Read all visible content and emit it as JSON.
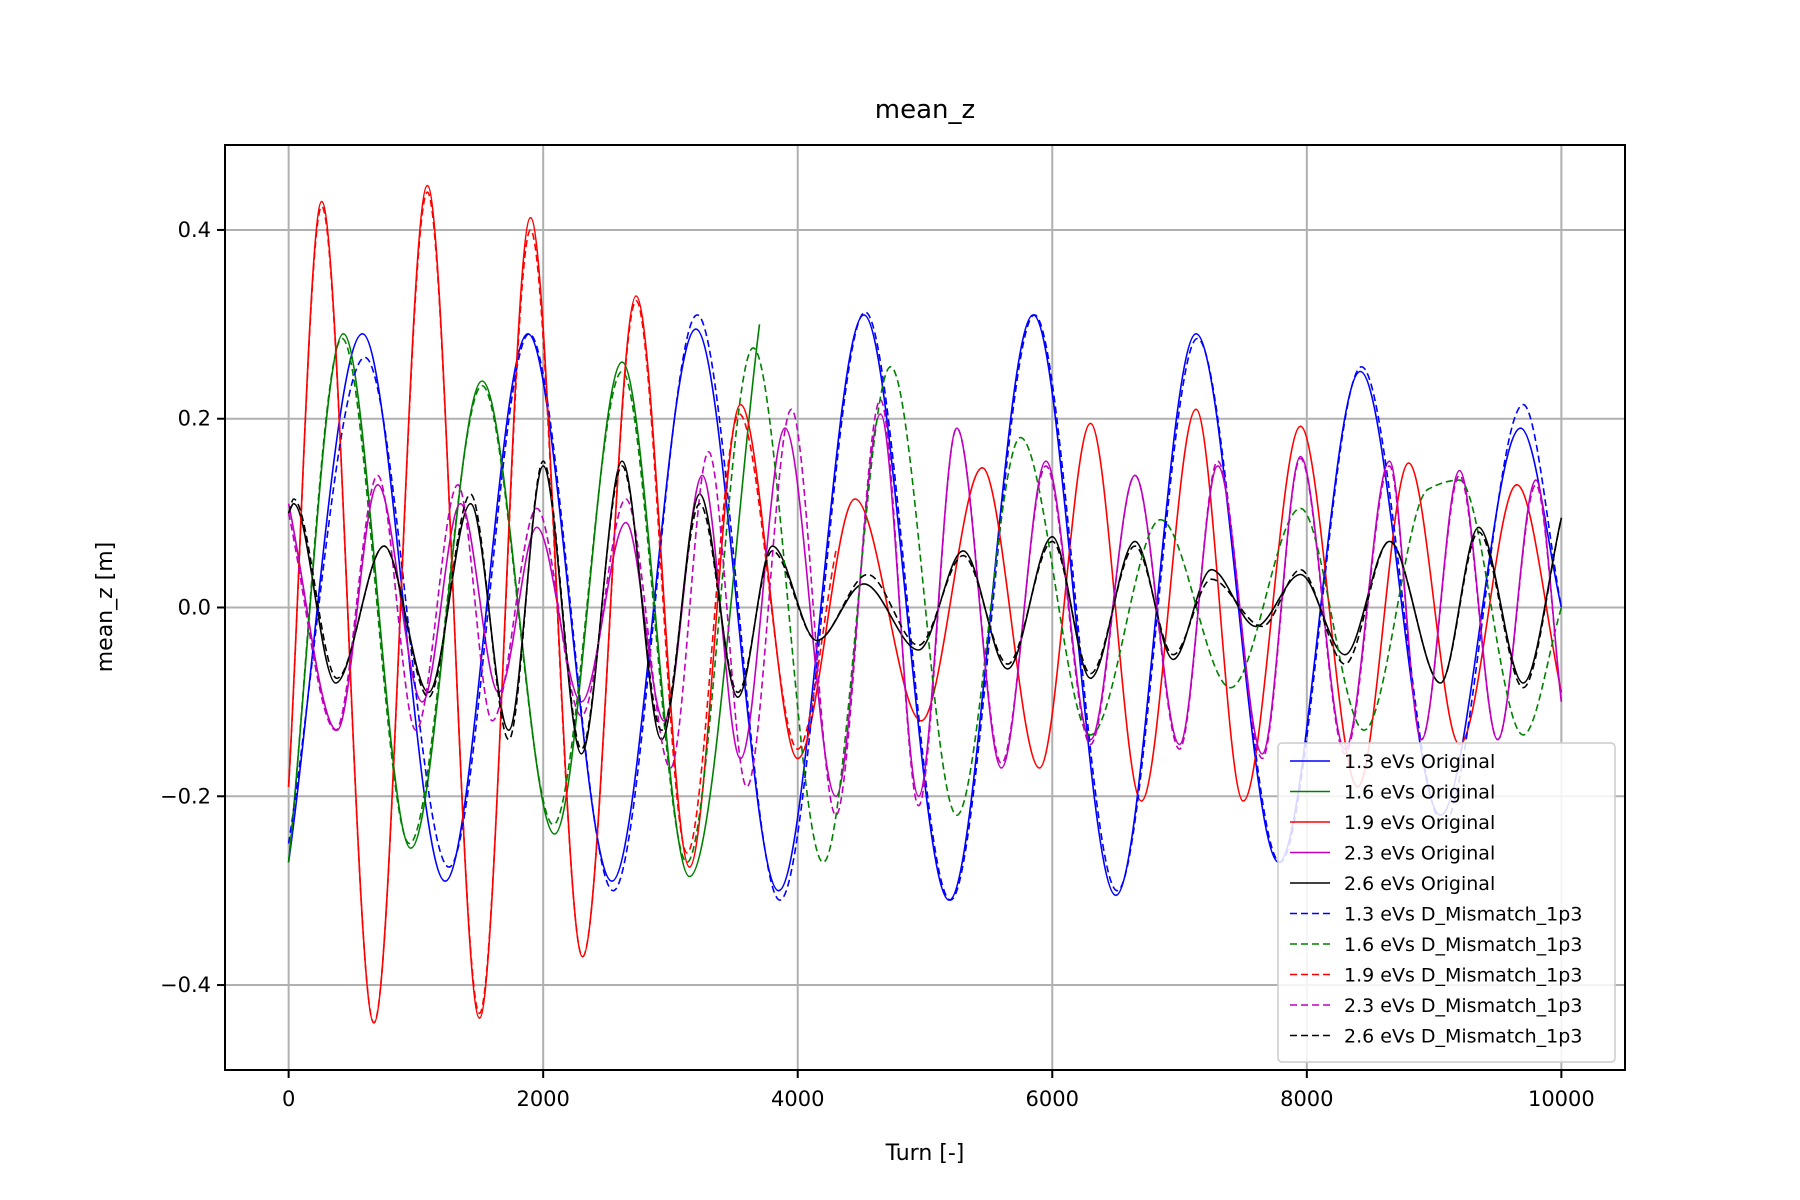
{
  "chart_data": {
    "type": "line",
    "title": "mean_z",
    "xlabel": "Turn [-]",
    "ylabel": "mean_z [m]",
    "xlim": [
      -500,
      10500
    ],
    "ylim": [
      -0.49,
      0.49
    ],
    "xticks": [
      0,
      2000,
      4000,
      6000,
      8000,
      10000
    ],
    "xtick_labels": [
      "0",
      "2000",
      "4000",
      "6000",
      "8000",
      "10000"
    ],
    "yticks": [
      -0.4,
      -0.2,
      0.0,
      0.2,
      0.4
    ],
    "ytick_labels": [
      "−0.4",
      "−0.2",
      "0.0",
      "0.2",
      "0.4"
    ],
    "grid": true,
    "legend_position": "lower-right",
    "series": [
      {
        "name": "1.3 eVs Original",
        "color": "#0000ff",
        "dash": "solid",
        "x": [
          0,
          580,
          1230,
          1880,
          2540,
          3200,
          3850,
          4520,
          5190,
          5850,
          6500,
          7130,
          7780,
          8420,
          9050,
          9680,
          10000
        ],
        "y": [
          -0.27,
          0.29,
          -0.29,
          0.29,
          -0.29,
          0.295,
          -0.3,
          0.31,
          -0.31,
          0.31,
          -0.305,
          0.29,
          -0.27,
          0.25,
          -0.22,
          0.19,
          0.0
        ]
      },
      {
        "name": "1.6 eVs Original",
        "color": "#008000",
        "dash": "solid",
        "x": [
          0,
          430,
          960,
          1520,
          2090,
          2620,
          3150,
          3700
        ],
        "y": [
          -0.27,
          0.29,
          -0.255,
          0.24,
          -0.24,
          0.26,
          -0.285,
          0.3
        ]
      },
      {
        "name": "1.9 eVs Original",
        "color": "#ff0000",
        "dash": "solid",
        "x": [
          0,
          260,
          670,
          1090,
          1500,
          1900,
          2310,
          2730,
          3150,
          3550,
          4000,
          4450,
          4970,
          5450,
          5900,
          6300,
          6700,
          7130,
          7500,
          7950,
          8400,
          8800,
          9200,
          9650,
          10000
        ],
        "y": [
          -0.19,
          0.43,
          -0.44,
          0.447,
          -0.435,
          0.413,
          -0.37,
          0.33,
          -0.275,
          0.215,
          -0.16,
          0.115,
          -0.12,
          0.148,
          -0.17,
          0.195,
          -0.205,
          0.21,
          -0.205,
          0.192,
          -0.19,
          0.153,
          -0.145,
          0.13,
          -0.09
        ]
      },
      {
        "name": "2.3 eVs Original",
        "color": "#bf00bf",
        "dash": "solid",
        "x": [
          0,
          380,
          700,
          1050,
          1350,
          1650,
          1950,
          2300,
          2650,
          2950,
          3250,
          3550,
          3900,
          4300,
          4650,
          4950,
          5250,
          5600,
          5950,
          6300,
          6650,
          7000,
          7300,
          7650,
          7950,
          8300,
          8650,
          8900,
          9200,
          9500,
          9800,
          10000
        ],
        "y": [
          0.11,
          -0.13,
          0.13,
          -0.1,
          0.11,
          -0.09,
          0.085,
          -0.1,
          0.09,
          -0.12,
          0.14,
          -0.16,
          0.19,
          -0.2,
          0.205,
          -0.2,
          0.19,
          -0.17,
          0.155,
          -0.14,
          0.14,
          -0.145,
          0.15,
          -0.155,
          0.16,
          -0.15,
          0.155,
          -0.14,
          0.145,
          -0.14,
          0.135,
          -0.1
        ]
      },
      {
        "name": "2.6 eVs Original",
        "color": "#000000",
        "dash": "solid",
        "x": [
          0,
          40,
          370,
          750,
          1100,
          1430,
          1730,
          2000,
          2300,
          2620,
          2930,
          3230,
          3530,
          3800,
          4150,
          4520,
          4950,
          5300,
          5650,
          6000,
          6300,
          6650,
          6950,
          7250,
          7600,
          7950,
          8300,
          8650,
          9050,
          9350,
          9700,
          10000
        ],
        "y": [
          0.1,
          0.11,
          -0.08,
          0.065,
          -0.09,
          0.11,
          -0.13,
          0.15,
          -0.155,
          0.155,
          -0.14,
          0.12,
          -0.095,
          0.065,
          -0.035,
          0.025,
          -0.045,
          0.06,
          -0.065,
          0.075,
          -0.075,
          0.07,
          -0.055,
          0.04,
          -0.02,
          0.035,
          -0.05,
          0.07,
          -0.08,
          0.085,
          -0.08,
          0.095
        ]
      },
      {
        "name": "1.3 eVs D_Mismatch_1p3",
        "color": "#0000ff",
        "dash": "dashed",
        "x": [
          0,
          600,
          1260,
          1890,
          2550,
          3210,
          3860,
          4530,
          5200,
          5860,
          6510,
          7140,
          7790,
          8430,
          9070,
          9700,
          10000
        ],
        "y": [
          -0.25,
          0.265,
          -0.275,
          0.29,
          -0.3,
          0.31,
          -0.31,
          0.313,
          -0.31,
          0.31,
          -0.3,
          0.285,
          -0.27,
          0.255,
          -0.23,
          0.215,
          0.0
        ]
      },
      {
        "name": "1.6 eVs D_Mismatch_1p3",
        "color": "#008000",
        "dash": "dashed",
        "x": [
          0,
          420,
          950,
          1520,
          2080,
          2620,
          3130,
          3650,
          4200,
          4730,
          5250,
          5750,
          6300,
          6850,
          7400,
          7950,
          8450,
          8950,
          9200,
          9700,
          10000
        ],
        "y": [
          -0.27,
          0.285,
          -0.25,
          0.235,
          -0.23,
          0.25,
          -0.27,
          0.275,
          -0.27,
          0.255,
          -0.22,
          0.18,
          -0.135,
          0.093,
          -0.085,
          0.105,
          -0.13,
          0.125,
          0.135,
          -0.135,
          0.0
        ]
      },
      {
        "name": "1.9 eVs D_Mismatch_1p3",
        "color": "#ff0000",
        "dash": "dashed",
        "x": [
          0,
          260,
          670,
          1090,
          1500,
          1900,
          2310,
          2730,
          3130,
          3540,
          4000,
          4300
        ],
        "y": [
          -0.19,
          0.425,
          -0.44,
          0.44,
          -0.43,
          0.4,
          -0.37,
          0.325,
          -0.26,
          0.205,
          -0.15,
          0.06
        ]
      },
      {
        "name": "2.3 eVs D_Mismatch_1p3",
        "color": "#bf00bf",
        "dash": "dashed",
        "x": [
          0,
          370,
          700,
          1000,
          1330,
          1600,
          1950,
          2300,
          2650,
          3000,
          3300,
          3600,
          3950,
          4300,
          4650,
          4950,
          5250,
          5600,
          5950,
          6300,
          6650,
          7000,
          7300,
          7650,
          7950,
          8300,
          8650,
          8900,
          9200,
          9500,
          9800,
          10000
        ],
        "y": [
          0.1,
          -0.13,
          0.14,
          -0.13,
          0.13,
          -0.12,
          0.105,
          -0.115,
          0.115,
          -0.17,
          0.165,
          -0.19,
          0.21,
          -0.22,
          0.22,
          -0.21,
          0.19,
          -0.165,
          0.15,
          -0.145,
          0.14,
          -0.15,
          0.155,
          -0.16,
          0.158,
          -0.155,
          0.15,
          -0.14,
          0.14,
          -0.14,
          0.13,
          -0.1
        ]
      },
      {
        "name": "2.6 eVs D_Mismatch_1p3",
        "color": "#000000",
        "dash": "dashed",
        "x": [
          0,
          40,
          380,
          750,
          1100,
          1430,
          1730,
          2000,
          2300,
          2620,
          2930,
          3230,
          3530,
          3800,
          4150,
          4550,
          4950,
          5300,
          5650,
          6000,
          6300,
          6650,
          6950,
          7250,
          7650,
          7950,
          8300,
          8650,
          9050,
          9350,
          9700,
          10000
        ],
        "y": [
          0.1,
          0.115,
          -0.075,
          0.065,
          -0.095,
          0.12,
          -0.14,
          0.155,
          -0.15,
          0.15,
          -0.13,
          0.11,
          -0.09,
          0.06,
          -0.035,
          0.035,
          -0.04,
          0.055,
          -0.06,
          0.07,
          -0.07,
          0.065,
          -0.05,
          0.03,
          -0.02,
          0.04,
          -0.06,
          0.07,
          -0.08,
          0.08,
          -0.085,
          0.095
        ]
      }
    ]
  }
}
